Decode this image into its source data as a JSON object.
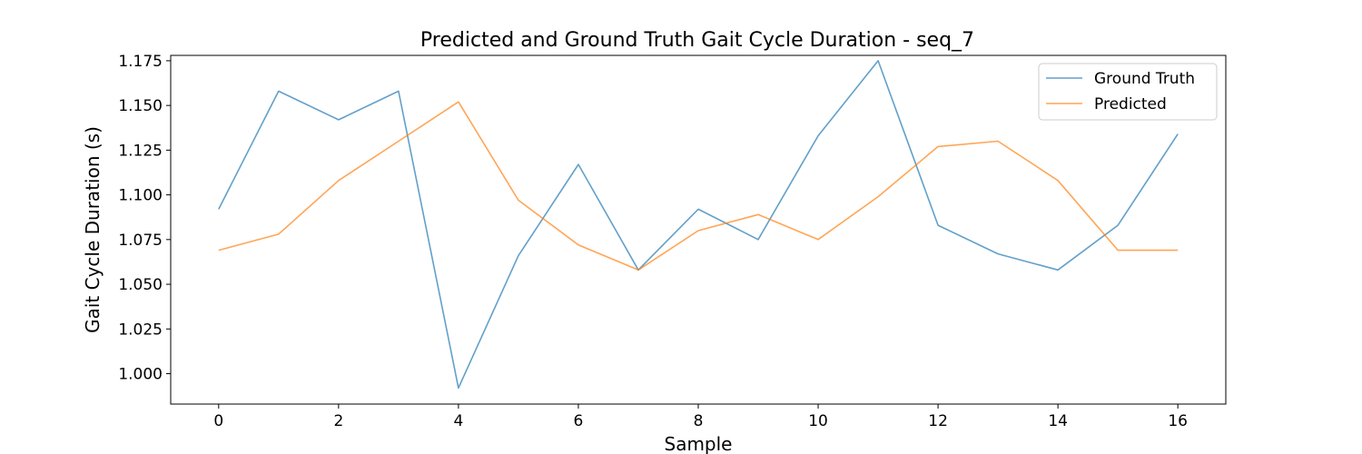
{
  "chart_data": {
    "type": "line",
    "title": "Predicted and Ground Truth Gait Cycle Duration - seq_7",
    "xlabel": "Sample",
    "ylabel": "Gait Cycle Duration (s)",
    "x": [
      0,
      1,
      2,
      3,
      4,
      5,
      6,
      7,
      8,
      9,
      10,
      11,
      12,
      13,
      14,
      15,
      16
    ],
    "xlim": [
      -0.8,
      16.8
    ],
    "ylim": [
      0.983,
      1.178
    ],
    "xticks": [
      0,
      2,
      4,
      6,
      8,
      10,
      12,
      14,
      16
    ],
    "yticks": [
      1.0,
      1.025,
      1.05,
      1.075,
      1.1,
      1.125,
      1.15,
      1.175
    ],
    "ytick_labels": [
      "1.000",
      "1.025",
      "1.050",
      "1.075",
      "1.100",
      "1.125",
      "1.150",
      "1.175"
    ],
    "grid": false,
    "legend_position": "top-right",
    "series": [
      {
        "name": "Ground Truth",
        "color": "#1f77b4",
        "values": [
          1.092,
          1.158,
          1.142,
          1.158,
          0.992,
          1.066,
          1.117,
          1.058,
          1.092,
          1.075,
          1.133,
          1.175,
          1.083,
          1.067,
          1.058,
          1.083,
          1.134
        ]
      },
      {
        "name": "Predicted",
        "color": "#ff7f0e",
        "values": [
          1.069,
          1.078,
          1.108,
          1.13,
          1.152,
          1.097,
          1.072,
          1.058,
          1.08,
          1.089,
          1.075,
          1.099,
          1.127,
          1.13,
          1.108,
          1.069,
          1.069
        ]
      }
    ]
  }
}
